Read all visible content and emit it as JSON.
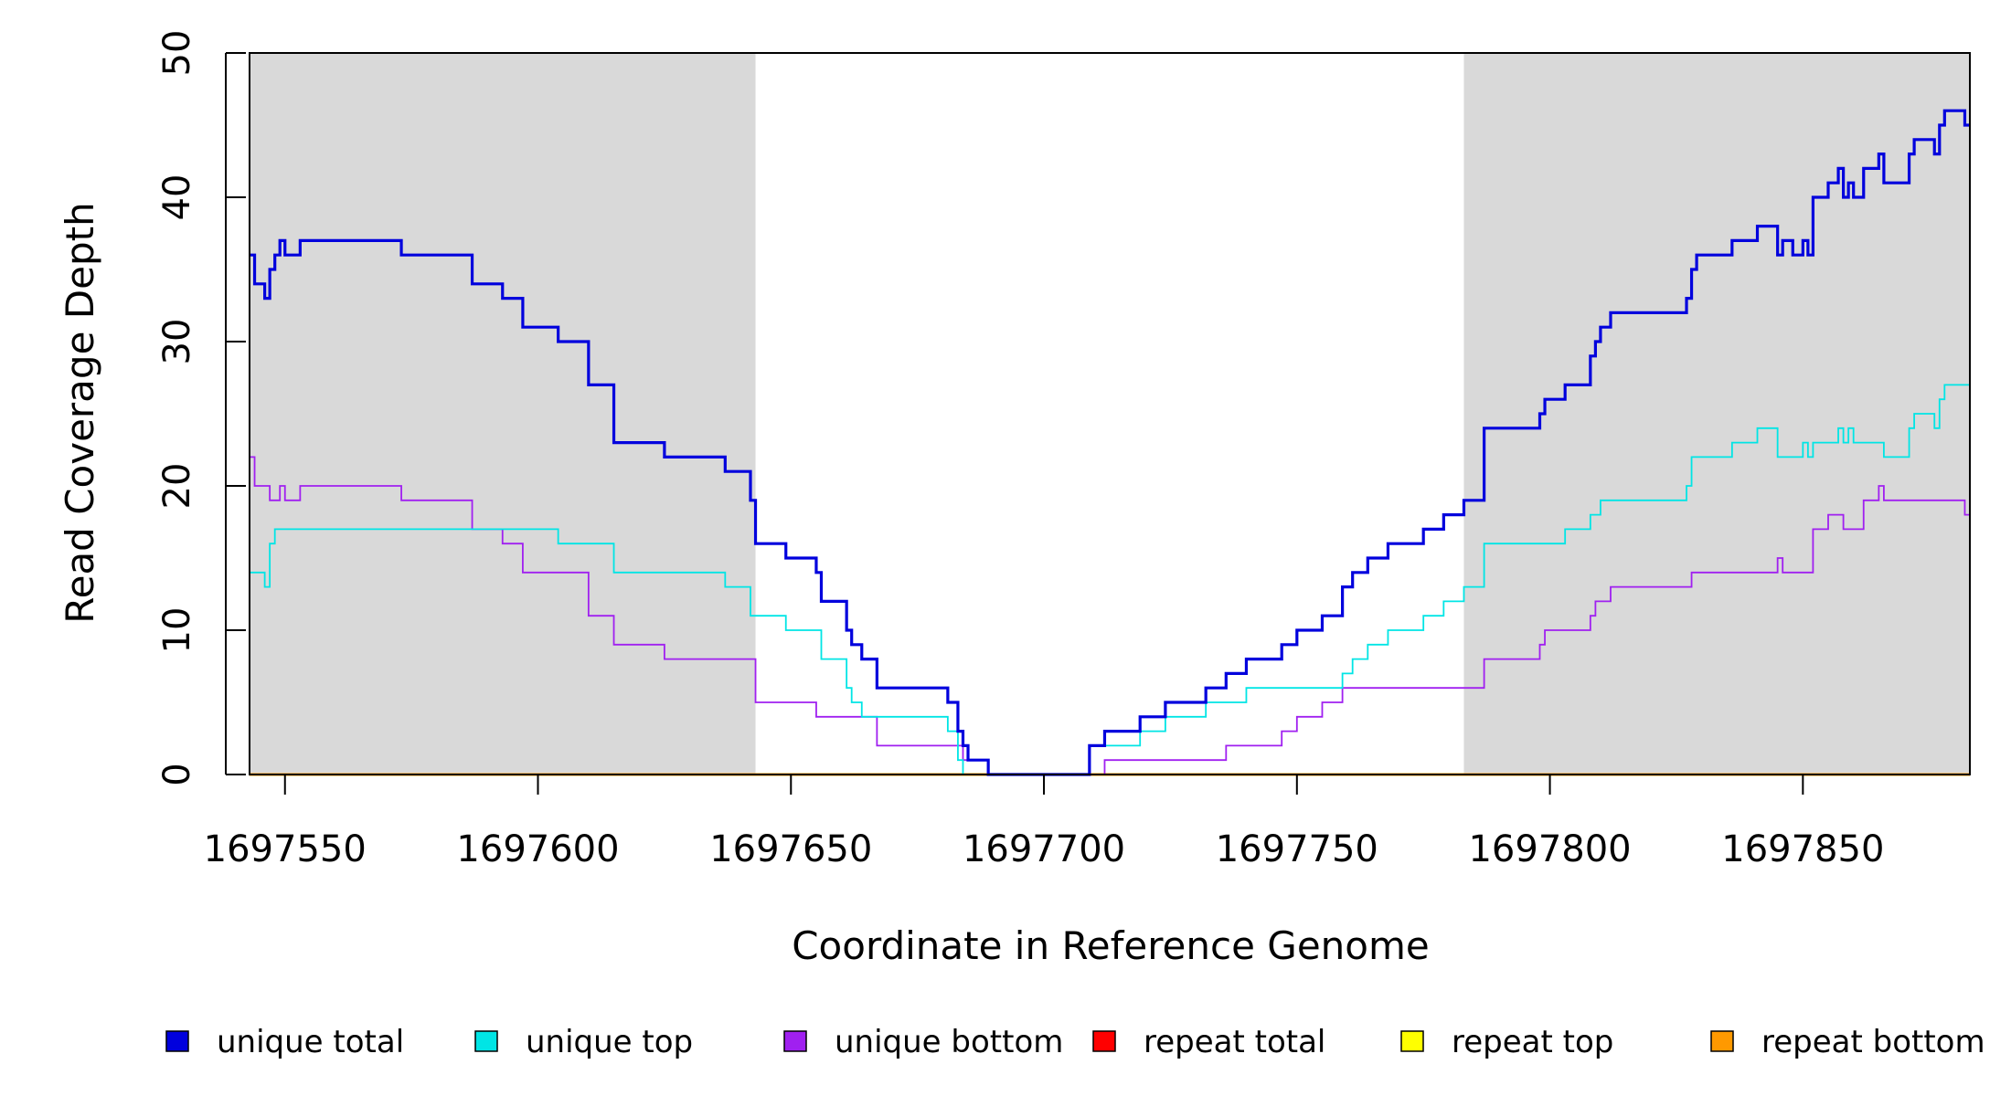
{
  "chart_data": {
    "type": "line",
    "title": "",
    "xlabel": "Coordinate in Reference Genome",
    "ylabel": "Read Coverage Depth",
    "xlim": [
      1697543,
      1697883
    ],
    "ylim": [
      0,
      50
    ],
    "xticks": [
      1697550,
      1697600,
      1697650,
      1697700,
      1697750,
      1697800,
      1697850
    ],
    "yticks": [
      0,
      10,
      20,
      30,
      40,
      50
    ],
    "xtick_labels": [
      "1697550",
      "1697600",
      "1697650",
      "1697700",
      "1697750",
      "1697800",
      "1697850"
    ],
    "ytick_labels": [
      "0",
      "10",
      "20",
      "30",
      "40",
      "50"
    ],
    "grid": false,
    "legend_position": "bottom",
    "shaded_regions": [
      {
        "x_start": 1697543,
        "x_end": 1697643,
        "color": "#d9d9d9"
      },
      {
        "x_start": 1697783,
        "x_end": 1697883,
        "color": "#d9d9d9"
      }
    ],
    "series": [
      {
        "name": "unique total",
        "color": "#0000dd",
        "line_width": 3.2,
        "points": [
          [
            1697543,
            36
          ],
          [
            1697544,
            34
          ],
          [
            1697546,
            33
          ],
          [
            1697547,
            35
          ],
          [
            1697548,
            36
          ],
          [
            1697549,
            37
          ],
          [
            1697550,
            36
          ],
          [
            1697553,
            37
          ],
          [
            1697573,
            36
          ],
          [
            1697587,
            34
          ],
          [
            1697593,
            33
          ],
          [
            1697597,
            31
          ],
          [
            1697604,
            30
          ],
          [
            1697610,
            27
          ],
          [
            1697615,
            23
          ],
          [
            1697625,
            22
          ],
          [
            1697637,
            21
          ],
          [
            1697642,
            19
          ],
          [
            1697643,
            16
          ],
          [
            1697649,
            15
          ],
          [
            1697655,
            14
          ],
          [
            1697656,
            12
          ],
          [
            1697661,
            10
          ],
          [
            1697662,
            9
          ],
          [
            1697664,
            8
          ],
          [
            1697667,
            6
          ],
          [
            1697681,
            5
          ],
          [
            1697683,
            3
          ],
          [
            1697684,
            2
          ],
          [
            1697685,
            1
          ],
          [
            1697689,
            0
          ],
          [
            1697709,
            2
          ],
          [
            1697712,
            3
          ],
          [
            1697719,
            4
          ],
          [
            1697724,
            5
          ],
          [
            1697732,
            6
          ],
          [
            1697736,
            7
          ],
          [
            1697740,
            8
          ],
          [
            1697747,
            9
          ],
          [
            1697750,
            10
          ],
          [
            1697755,
            11
          ],
          [
            1697759,
            13
          ],
          [
            1697761,
            14
          ],
          [
            1697764,
            15
          ],
          [
            1697768,
            16
          ],
          [
            1697775,
            17
          ],
          [
            1697779,
            18
          ],
          [
            1697783,
            19
          ],
          [
            1697787,
            24
          ],
          [
            1697798,
            25
          ],
          [
            1697799,
            26
          ],
          [
            1697803,
            27
          ],
          [
            1697808,
            29
          ],
          [
            1697809,
            30
          ],
          [
            1697810,
            31
          ],
          [
            1697812,
            32
          ],
          [
            1697827,
            33
          ],
          [
            1697828,
            35
          ],
          [
            1697829,
            36
          ],
          [
            1697836,
            37
          ],
          [
            1697841,
            38
          ],
          [
            1697845,
            36
          ],
          [
            1697846,
            37
          ],
          [
            1697848,
            36
          ],
          [
            1697850,
            37
          ],
          [
            1697851,
            36
          ],
          [
            1697852,
            40
          ],
          [
            1697855,
            41
          ],
          [
            1697857,
            42
          ],
          [
            1697858,
            40
          ],
          [
            1697859,
            41
          ],
          [
            1697860,
            40
          ],
          [
            1697862,
            42
          ],
          [
            1697865,
            43
          ],
          [
            1697866,
            41
          ],
          [
            1697871,
            43
          ],
          [
            1697872,
            44
          ],
          [
            1697876,
            43
          ],
          [
            1697877,
            45
          ],
          [
            1697878,
            46
          ],
          [
            1697882,
            45
          ],
          [
            1697883,
            45
          ]
        ]
      },
      {
        "name": "unique top",
        "color": "#00e5e5",
        "line_width": 1.8,
        "points": [
          [
            1697543,
            14
          ],
          [
            1697546,
            13
          ],
          [
            1697547,
            16
          ],
          [
            1697548,
            17
          ],
          [
            1697604,
            16
          ],
          [
            1697615,
            14
          ],
          [
            1697637,
            13
          ],
          [
            1697642,
            11
          ],
          [
            1697649,
            10
          ],
          [
            1697656,
            8
          ],
          [
            1697661,
            6
          ],
          [
            1697662,
            5
          ],
          [
            1697664,
            4
          ],
          [
            1697681,
            3
          ],
          [
            1697683,
            1
          ],
          [
            1697684,
            0
          ],
          [
            1697709,
            2
          ],
          [
            1697719,
            3
          ],
          [
            1697724,
            4
          ],
          [
            1697732,
            5
          ],
          [
            1697740,
            6
          ],
          [
            1697759,
            7
          ],
          [
            1697761,
            8
          ],
          [
            1697764,
            9
          ],
          [
            1697768,
            10
          ],
          [
            1697775,
            11
          ],
          [
            1697779,
            12
          ],
          [
            1697783,
            13
          ],
          [
            1697787,
            16
          ],
          [
            1697803,
            17
          ],
          [
            1697808,
            18
          ],
          [
            1697810,
            19
          ],
          [
            1697827,
            20
          ],
          [
            1697828,
            22
          ],
          [
            1697836,
            23
          ],
          [
            1697841,
            24
          ],
          [
            1697845,
            22
          ],
          [
            1697850,
            23
          ],
          [
            1697851,
            22
          ],
          [
            1697852,
            23
          ],
          [
            1697857,
            24
          ],
          [
            1697858,
            23
          ],
          [
            1697859,
            24
          ],
          [
            1697860,
            23
          ],
          [
            1697866,
            22
          ],
          [
            1697871,
            24
          ],
          [
            1697872,
            25
          ],
          [
            1697876,
            24
          ],
          [
            1697877,
            26
          ],
          [
            1697878,
            27
          ],
          [
            1697883,
            27
          ]
        ]
      },
      {
        "name": "unique bottom",
        "color": "#a020f0",
        "line_width": 1.8,
        "points": [
          [
            1697543,
            22
          ],
          [
            1697544,
            20
          ],
          [
            1697547,
            19
          ],
          [
            1697549,
            20
          ],
          [
            1697550,
            19
          ],
          [
            1697553,
            20
          ],
          [
            1697573,
            19
          ],
          [
            1697587,
            17
          ],
          [
            1697593,
            16
          ],
          [
            1697597,
            14
          ],
          [
            1697610,
            11
          ],
          [
            1697615,
            9
          ],
          [
            1697625,
            8
          ],
          [
            1697643,
            5
          ],
          [
            1697655,
            4
          ],
          [
            1697667,
            2
          ],
          [
            1697684,
            1
          ],
          [
            1697689,
            0
          ],
          [
            1697712,
            1
          ],
          [
            1697736,
            2
          ],
          [
            1697747,
            3
          ],
          [
            1697750,
            4
          ],
          [
            1697755,
            5
          ],
          [
            1697759,
            6
          ],
          [
            1697787,
            8
          ],
          [
            1697798,
            9
          ],
          [
            1697799,
            10
          ],
          [
            1697808,
            11
          ],
          [
            1697809,
            12
          ],
          [
            1697812,
            13
          ],
          [
            1697828,
            14
          ],
          [
            1697845,
            15
          ],
          [
            1697846,
            14
          ],
          [
            1697852,
            17
          ],
          [
            1697855,
            18
          ],
          [
            1697858,
            17
          ],
          [
            1697862,
            19
          ],
          [
            1697865,
            20
          ],
          [
            1697866,
            19
          ],
          [
            1697882,
            18
          ],
          [
            1697883,
            18
          ]
        ]
      },
      {
        "name": "repeat total",
        "color": "#ff0000",
        "line_width": 1.8,
        "points": [
          [
            1697543,
            0
          ],
          [
            1697883,
            0
          ]
        ]
      },
      {
        "name": "repeat top",
        "color": "#ffff00",
        "line_width": 1.8,
        "points": [
          [
            1697543,
            0
          ],
          [
            1697883,
            0
          ]
        ]
      },
      {
        "name": "repeat bottom",
        "color": "#ff9900",
        "line_width": 3,
        "points": [
          [
            1697543,
            0
          ],
          [
            1697883,
            0
          ]
        ]
      }
    ]
  }
}
